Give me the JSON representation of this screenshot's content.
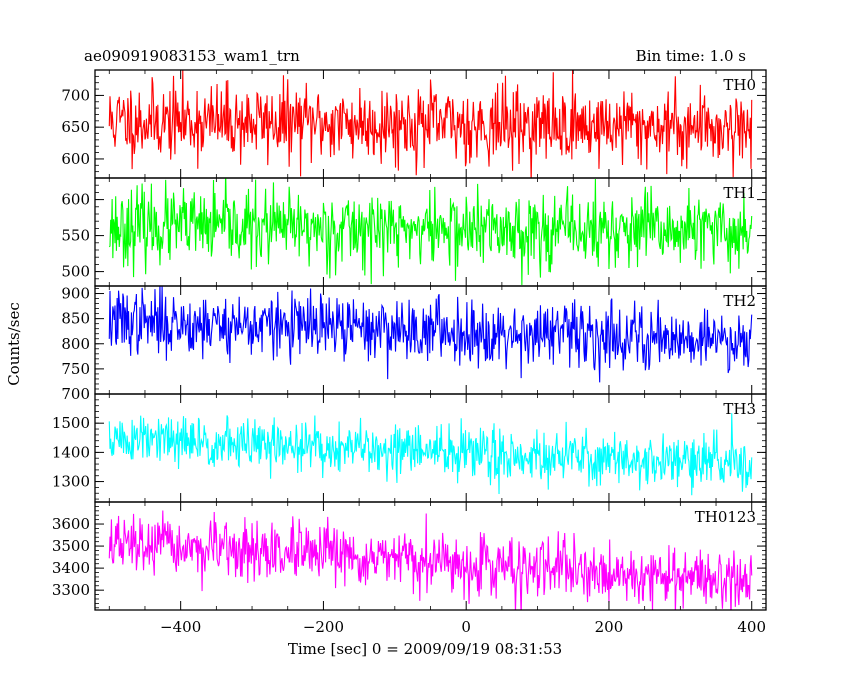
{
  "header": {
    "title": "ae090919083153_wam1_trn",
    "bin_time": "Bin time: 1.0 s"
  },
  "axes": {
    "xlabel": "Time [sec] 0 = 2009/09/19 08:31:53",
    "ylabel": "Counts/sec"
  },
  "chart_data": [
    {
      "type": "line",
      "name": "TH0",
      "color": "#ff0000",
      "xlim": [
        -520,
        420
      ],
      "ylim": [
        570,
        740
      ],
      "yticks": [
        600,
        650,
        700
      ],
      "x_start": -500,
      "x_end": 400,
      "trend_start": 660,
      "trend_end": 650,
      "noise": 30,
      "seed": 11,
      "show_x_labels": false
    },
    {
      "type": "line",
      "name": "TH1",
      "color": "#00ff00",
      "xlim": [
        -520,
        420
      ],
      "ylim": [
        480,
        630
      ],
      "yticks": [
        500,
        550,
        600
      ],
      "x_start": -500,
      "x_end": 400,
      "trend_start": 563,
      "trend_end": 555,
      "noise": 26,
      "seed": 23,
      "show_x_labels": false
    },
    {
      "type": "line",
      "name": "TH2",
      "color": "#0000ff",
      "xlim": [
        -520,
        420
      ],
      "ylim": [
        700,
        915
      ],
      "yticks": [
        700,
        750,
        800,
        850,
        900
      ],
      "x_start": -500,
      "x_end": 400,
      "trend_start": 845,
      "trend_end": 808,
      "noise": 32,
      "seed": 37,
      "show_x_labels": false
    },
    {
      "type": "line",
      "name": "TH3",
      "color": "#00ffff",
      "xlim": [
        -520,
        420
      ],
      "ylim": [
        1230,
        1600
      ],
      "yticks": [
        1300,
        1400,
        1500
      ],
      "x_start": -500,
      "x_end": 400,
      "trend_start": 1445,
      "trend_end": 1360,
      "noise": 45,
      "seed": 51,
      "show_x_labels": false
    },
    {
      "type": "line",
      "name": "TH0123",
      "color": "#ff00ff",
      "xlim": [
        -520,
        420
      ],
      "ylim": [
        3210,
        3700
      ],
      "yticks": [
        3300,
        3400,
        3500,
        3600
      ],
      "x_start": -500,
      "x_end": 400,
      "trend_start": 3510,
      "trend_end": 3340,
      "noise": 65,
      "seed": 67,
      "show_x_labels": true,
      "xticks": [
        -400,
        -200,
        0,
        200,
        400
      ]
    }
  ]
}
